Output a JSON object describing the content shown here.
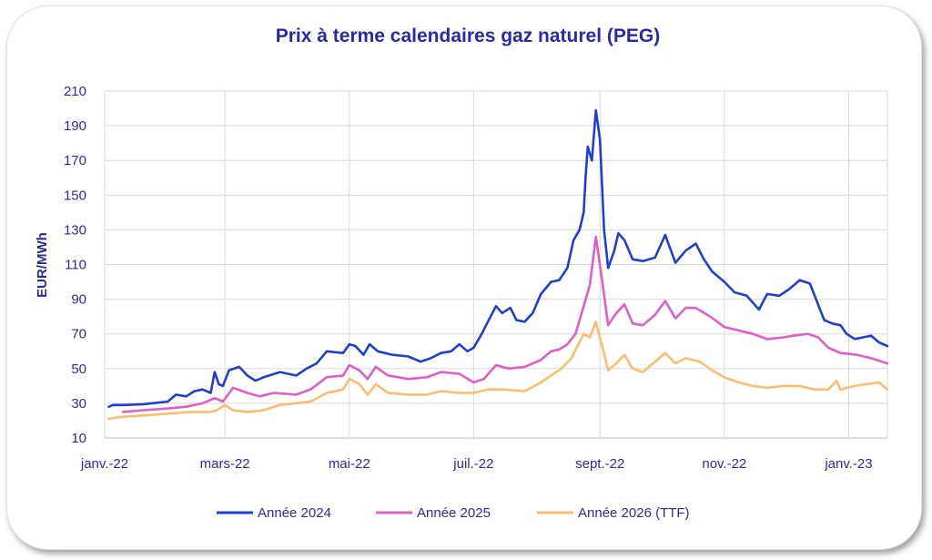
{
  "chart_data": {
    "type": "line",
    "title": "Prix à terme calendaires gaz naturel (PEG)",
    "ylabel": "EUR/MWh",
    "xlabel": "",
    "ylim": [
      10,
      210
    ],
    "yticks": [
      10,
      30,
      50,
      70,
      90,
      110,
      130,
      150,
      170,
      190,
      210
    ],
    "xlim": [
      "2022-01-01",
      "2023-01-20"
    ],
    "xticks": [
      {
        "label": "janv.-22",
        "date": "2022-01-01"
      },
      {
        "label": "mars-22",
        "date": "2022-03-01"
      },
      {
        "label": "mai-22",
        "date": "2022-05-01"
      },
      {
        "label": "juil.-22",
        "date": "2022-07-01"
      },
      {
        "label": "sept.-22",
        "date": "2022-09-01"
      },
      {
        "label": "nov.-22",
        "date": "2022-11-01"
      },
      {
        "label": "janv.-23",
        "date": "2023-01-01"
      }
    ],
    "grid": true,
    "legend_position": "bottom",
    "series": [
      {
        "name": "Année 2024",
        "color": "#1f3fd4",
        "points": [
          [
            "2022-01-03",
            28
          ],
          [
            "2022-01-05",
            29
          ],
          [
            "2022-01-10",
            29
          ],
          [
            "2022-01-20",
            29.5
          ],
          [
            "2022-02-01",
            31
          ],
          [
            "2022-02-05",
            35
          ],
          [
            "2022-02-10",
            34
          ],
          [
            "2022-02-14",
            37
          ],
          [
            "2022-02-18",
            38
          ],
          [
            "2022-02-22",
            36
          ],
          [
            "2022-02-24",
            48
          ],
          [
            "2022-02-26",
            41
          ],
          [
            "2022-02-28",
            40
          ],
          [
            "2022-03-03",
            49
          ],
          [
            "2022-03-08",
            51
          ],
          [
            "2022-03-12",
            46
          ],
          [
            "2022-03-16",
            43
          ],
          [
            "2022-03-20",
            45
          ],
          [
            "2022-03-28",
            48
          ],
          [
            "2022-04-05",
            46
          ],
          [
            "2022-04-10",
            50
          ],
          [
            "2022-04-15",
            53
          ],
          [
            "2022-04-20",
            60
          ],
          [
            "2022-04-28",
            59
          ],
          [
            "2022-05-01",
            64
          ],
          [
            "2022-05-04",
            63
          ],
          [
            "2022-05-08",
            58
          ],
          [
            "2022-05-11",
            64
          ],
          [
            "2022-05-15",
            60
          ],
          [
            "2022-05-22",
            58
          ],
          [
            "2022-05-30",
            57
          ],
          [
            "2022-06-05",
            54
          ],
          [
            "2022-06-10",
            56
          ],
          [
            "2022-06-15",
            59
          ],
          [
            "2022-06-20",
            60
          ],
          [
            "2022-06-24",
            64
          ],
          [
            "2022-06-28",
            60
          ],
          [
            "2022-07-01",
            62
          ],
          [
            "2022-07-05",
            70
          ],
          [
            "2022-07-08",
            77
          ],
          [
            "2022-07-12",
            86
          ],
          [
            "2022-07-15",
            82
          ],
          [
            "2022-07-19",
            85
          ],
          [
            "2022-07-22",
            78
          ],
          [
            "2022-07-26",
            77
          ],
          [
            "2022-07-30",
            82
          ],
          [
            "2022-08-03",
            93
          ],
          [
            "2022-08-08",
            100
          ],
          [
            "2022-08-12",
            101
          ],
          [
            "2022-08-16",
            108
          ],
          [
            "2022-08-19",
            124
          ],
          [
            "2022-08-22",
            130
          ],
          [
            "2022-08-24",
            140
          ],
          [
            "2022-08-25",
            161
          ],
          [
            "2022-08-26",
            178
          ],
          [
            "2022-08-28",
            170
          ],
          [
            "2022-08-30",
            199
          ],
          [
            "2022-09-01",
            182
          ],
          [
            "2022-09-03",
            130
          ],
          [
            "2022-09-05",
            108
          ],
          [
            "2022-09-08",
            118
          ],
          [
            "2022-09-10",
            128
          ],
          [
            "2022-09-13",
            124
          ],
          [
            "2022-09-17",
            113
          ],
          [
            "2022-09-22",
            112
          ],
          [
            "2022-09-28",
            114
          ],
          [
            "2022-10-03",
            127
          ],
          [
            "2022-10-08",
            111
          ],
          [
            "2022-10-13",
            118
          ],
          [
            "2022-10-18",
            122
          ],
          [
            "2022-10-22",
            113
          ],
          [
            "2022-10-26",
            106
          ],
          [
            "2022-11-01",
            100
          ],
          [
            "2022-11-06",
            94
          ],
          [
            "2022-11-12",
            92
          ],
          [
            "2022-11-18",
            84
          ],
          [
            "2022-11-22",
            93
          ],
          [
            "2022-11-28",
            92
          ],
          [
            "2022-12-03",
            96
          ],
          [
            "2022-12-08",
            101
          ],
          [
            "2022-12-13",
            99
          ],
          [
            "2022-12-16",
            90
          ],
          [
            "2022-12-20",
            78
          ],
          [
            "2022-12-24",
            76
          ],
          [
            "2022-12-28",
            75
          ],
          [
            "2022-12-31",
            70
          ],
          [
            "2023-01-04",
            67
          ],
          [
            "2023-01-08",
            68
          ],
          [
            "2023-01-12",
            69
          ],
          [
            "2023-01-16",
            65
          ],
          [
            "2023-01-20",
            63
          ]
        ]
      },
      {
        "name": "Année 2025",
        "color": "#de5fc6",
        "points": [
          [
            "2022-01-10",
            25
          ],
          [
            "2022-01-20",
            26
          ],
          [
            "2022-02-01",
            27
          ],
          [
            "2022-02-10",
            28
          ],
          [
            "2022-02-18",
            30
          ],
          [
            "2022-02-24",
            33
          ],
          [
            "2022-02-28",
            31
          ],
          [
            "2022-03-05",
            39
          ],
          [
            "2022-03-12",
            36
          ],
          [
            "2022-03-18",
            34
          ],
          [
            "2022-03-25",
            36
          ],
          [
            "2022-04-05",
            35
          ],
          [
            "2022-04-12",
            38
          ],
          [
            "2022-04-20",
            45
          ],
          [
            "2022-04-28",
            46
          ],
          [
            "2022-05-01",
            52
          ],
          [
            "2022-05-06",
            49
          ],
          [
            "2022-05-10",
            44
          ],
          [
            "2022-05-14",
            51
          ],
          [
            "2022-05-20",
            46
          ],
          [
            "2022-05-30",
            44
          ],
          [
            "2022-06-08",
            45
          ],
          [
            "2022-06-15",
            48
          ],
          [
            "2022-06-24",
            47
          ],
          [
            "2022-07-01",
            42
          ],
          [
            "2022-07-06",
            44
          ],
          [
            "2022-07-12",
            52
          ],
          [
            "2022-07-18",
            50
          ],
          [
            "2022-07-26",
            51
          ],
          [
            "2022-08-03",
            55
          ],
          [
            "2022-08-08",
            60
          ],
          [
            "2022-08-12",
            61
          ],
          [
            "2022-08-16",
            64
          ],
          [
            "2022-08-20",
            70
          ],
          [
            "2022-08-24",
            86
          ],
          [
            "2022-08-27",
            98
          ],
          [
            "2022-08-30",
            126
          ],
          [
            "2022-09-02",
            101
          ],
          [
            "2022-09-05",
            75
          ],
          [
            "2022-09-09",
            82
          ],
          [
            "2022-09-13",
            87
          ],
          [
            "2022-09-17",
            76
          ],
          [
            "2022-09-22",
            75
          ],
          [
            "2022-09-28",
            81
          ],
          [
            "2022-10-03",
            89
          ],
          [
            "2022-10-08",
            79
          ],
          [
            "2022-10-13",
            85
          ],
          [
            "2022-10-18",
            85
          ],
          [
            "2022-10-25",
            80
          ],
          [
            "2022-11-01",
            74
          ],
          [
            "2022-11-08",
            72
          ],
          [
            "2022-11-15",
            70
          ],
          [
            "2022-11-22",
            67
          ],
          [
            "2022-11-30",
            68
          ],
          [
            "2022-12-05",
            69
          ],
          [
            "2022-12-12",
            70
          ],
          [
            "2022-12-17",
            68
          ],
          [
            "2022-12-22",
            62
          ],
          [
            "2022-12-28",
            59
          ],
          [
            "2023-01-05",
            58
          ],
          [
            "2023-01-12",
            56
          ],
          [
            "2023-01-20",
            53
          ]
        ]
      },
      {
        "name": "Année 2026 (TTF)",
        "color": "#fbbd6f",
        "points": [
          [
            "2022-01-03",
            21
          ],
          [
            "2022-01-08",
            22
          ],
          [
            "2022-01-20",
            23
          ],
          [
            "2022-02-01",
            24
          ],
          [
            "2022-02-12",
            25
          ],
          [
            "2022-02-22",
            25
          ],
          [
            "2022-02-25",
            26
          ],
          [
            "2022-03-01",
            29
          ],
          [
            "2022-03-05",
            26
          ],
          [
            "2022-03-12",
            25
          ],
          [
            "2022-03-20",
            26
          ],
          [
            "2022-03-28",
            29
          ],
          [
            "2022-04-05",
            30
          ],
          [
            "2022-04-12",
            31
          ],
          [
            "2022-04-20",
            36
          ],
          [
            "2022-04-28",
            38
          ],
          [
            "2022-05-01",
            44
          ],
          [
            "2022-05-06",
            41
          ],
          [
            "2022-05-10",
            35
          ],
          [
            "2022-05-14",
            41
          ],
          [
            "2022-05-20",
            36
          ],
          [
            "2022-05-30",
            35
          ],
          [
            "2022-06-08",
            35
          ],
          [
            "2022-06-15",
            37
          ],
          [
            "2022-06-24",
            36
          ],
          [
            "2022-07-01",
            36
          ],
          [
            "2022-07-08",
            38
          ],
          [
            "2022-07-15",
            38
          ],
          [
            "2022-07-26",
            37
          ],
          [
            "2022-08-03",
            42
          ],
          [
            "2022-08-08",
            46
          ],
          [
            "2022-08-13",
            50
          ],
          [
            "2022-08-18",
            56
          ],
          [
            "2022-08-24",
            70
          ],
          [
            "2022-08-27",
            68
          ],
          [
            "2022-08-30",
            77
          ],
          [
            "2022-09-02",
            63
          ],
          [
            "2022-09-05",
            49
          ],
          [
            "2022-09-09",
            53
          ],
          [
            "2022-09-13",
            58
          ],
          [
            "2022-09-17",
            50
          ],
          [
            "2022-09-22",
            48
          ],
          [
            "2022-09-28",
            54
          ],
          [
            "2022-10-03",
            59
          ],
          [
            "2022-10-08",
            53
          ],
          [
            "2022-10-13",
            56
          ],
          [
            "2022-10-20",
            54
          ],
          [
            "2022-10-26",
            49
          ],
          [
            "2022-11-01",
            45
          ],
          [
            "2022-11-08",
            42
          ],
          [
            "2022-11-15",
            40
          ],
          [
            "2022-11-22",
            39
          ],
          [
            "2022-11-30",
            40
          ],
          [
            "2022-12-08",
            40
          ],
          [
            "2022-12-15",
            38
          ],
          [
            "2022-12-22",
            38
          ],
          [
            "2022-12-26",
            43
          ],
          [
            "2022-12-28",
            38
          ],
          [
            "2023-01-04",
            40
          ],
          [
            "2023-01-10",
            41
          ],
          [
            "2023-01-16",
            42
          ],
          [
            "2023-01-20",
            38
          ]
        ]
      }
    ]
  }
}
